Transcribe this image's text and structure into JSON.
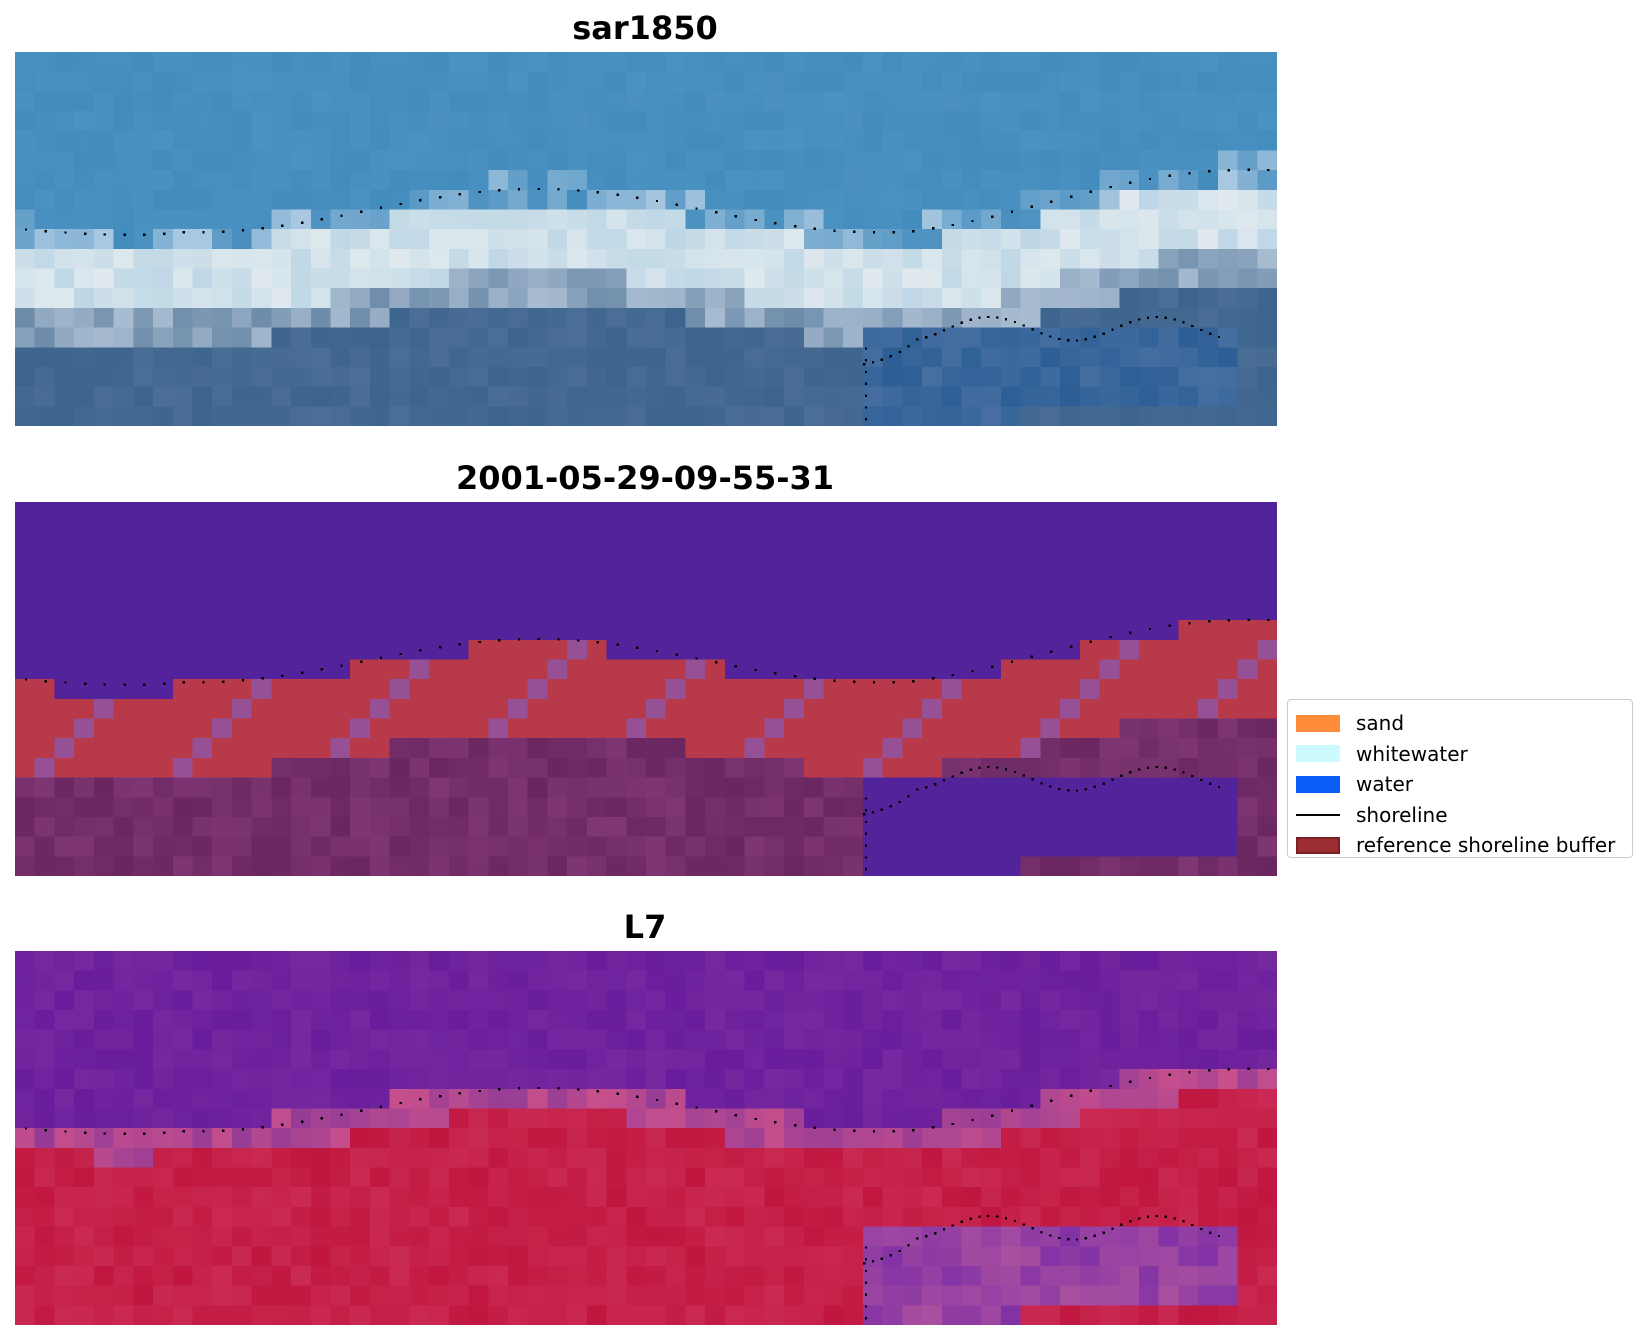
{
  "panels": [
    {
      "title": "sar1850",
      "image": "rgb-satellite-image"
    },
    {
      "title": "2001-05-29-09-55-31",
      "image": "classified-image-with-shoreline-buffer"
    },
    {
      "title": "L7",
      "image": "water-index-image"
    }
  ],
  "legend": {
    "items": [
      {
        "label": "sand",
        "color": "#ff8c3a",
        "kind": "patch"
      },
      {
        "label": "whitewater",
        "color": "#ccfaff",
        "kind": "patch"
      },
      {
        "label": "water",
        "color": "#0a5cf7",
        "kind": "patch"
      },
      {
        "label": "shoreline",
        "color": "#000000",
        "kind": "line"
      },
      {
        "label": "reference shoreline buffer",
        "color": "#9b2d33",
        "kind": "patch",
        "edge": "#7a1f24"
      }
    ]
  },
  "colors": {
    "sky_blue": "#4a8fc2",
    "class_water": "#52239a",
    "class_buffer": "#b83a4a",
    "class_land": "#6a2a62",
    "index_purple": "#6d1c99",
    "index_red": "#c0163f",
    "shoreline_dots": "#000000"
  }
}
